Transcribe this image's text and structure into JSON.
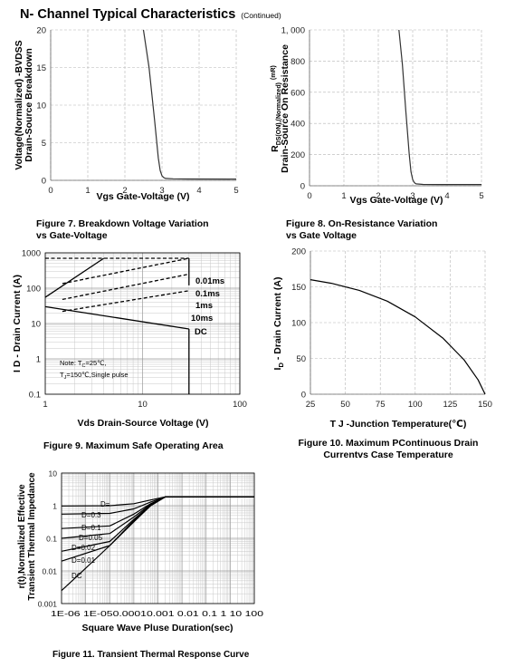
{
  "header": {
    "title": "N- Channel Typical Characteristics",
    "subtitle": "(Continued)"
  },
  "chart_data": [
    {
      "id": "fig7",
      "type": "line",
      "caption": [
        "Figure 7.   Breakdown Voltage Variation",
        "vs Gate-Voltage"
      ],
      "xlabel": "Vgs Gate-Voltage (V)",
      "ylabel": [
        "Voltage(Normalized) -BVDSS",
        "Drain-Source Breakdown"
      ],
      "xlim": [
        0,
        5
      ],
      "ylim": [
        0,
        20
      ],
      "xticks": [
        0,
        1,
        2,
        3,
        4,
        5
      ],
      "xticklabels": [
        "0",
        "1",
        "2",
        "3",
        "4",
        "5"
      ],
      "yticks": [
        0,
        5,
        10,
        15,
        20
      ],
      "yticklabels": [
        "0",
        "5",
        "10",
        "15",
        "20"
      ],
      "grid": "dashed",
      "series": [
        {
          "x": [
            2.5,
            2.65,
            2.8,
            2.9,
            2.95,
            3.0,
            3.05,
            3.1,
            3.3,
            3.7,
            5.0
          ],
          "y": [
            20,
            15,
            8,
            3,
            1.3,
            0.6,
            0.35,
            0.25,
            0.2,
            0.18,
            0.17
          ]
        }
      ]
    },
    {
      "id": "fig8",
      "type": "line",
      "caption": [
        "Figure 8. On-Resistance Variation",
        "vs Gate Voltage"
      ],
      "xlabel": "Vgs Gate-Voltage (V)",
      "ylabel_sub": "DS(ON),(Normalized)",
      "ylabel": [
        "R",
        "(mR)",
        "Drain-Source On Resistance"
      ],
      "xlim": [
        0,
        5
      ],
      "ylim": [
        0,
        1000
      ],
      "xticks": [
        0,
        1,
        2,
        3,
        4,
        5
      ],
      "xticklabels": [
        "0",
        "1",
        "2",
        "3",
        "4",
        "5"
      ],
      "yticks": [
        0,
        200,
        400,
        600,
        800,
        1000
      ],
      "yticklabels": [
        "0",
        "200",
        "400",
        "600",
        "800",
        "1, 000"
      ],
      "grid": "dashed",
      "series": [
        {
          "x": [
            2.6,
            2.7,
            2.8,
            2.9,
            2.95,
            3.0,
            3.05,
            3.1,
            3.3,
            3.8,
            5.0
          ],
          "y": [
            1000,
            780,
            480,
            200,
            90,
            40,
            20,
            12,
            9,
            8,
            8
          ]
        }
      ]
    },
    {
      "id": "fig9",
      "type": "line",
      "caption": [
        "Figure 9. Maximum Safe Operating Area"
      ],
      "xlabel": "Vds Drain-Source Voltage (V)",
      "ylabel": [
        "I D - Drain Current (A)"
      ],
      "xscale": "log",
      "yscale": "log",
      "xlim": [
        1,
        100
      ],
      "ylim": [
        0.1,
        1000
      ],
      "xticks": [
        1,
        10,
        100
      ],
      "xticklabels": [
        "1",
        "10",
        "100"
      ],
      "yticks": [
        0.1,
        1,
        10,
        100,
        1000
      ],
      "yticklabels": [
        "0.1",
        "1",
        "10",
        "100",
        "1000"
      ],
      "grid": "minor",
      "note": [
        "Note: T",
        "C",
        "=25℃,",
        "T",
        "J",
        "=150℃,Single pulse"
      ],
      "series": [
        {
          "name": "0.01ms",
          "style": "dashed",
          "x": [
            1,
            30
          ],
          "y": [
            700,
            700
          ]
        },
        {
          "name": "0.1ms",
          "style": "dashed",
          "x": [
            1.5,
            30
          ],
          "y": [
            135,
            700
          ]
        },
        {
          "name": "1ms",
          "style": "dashed",
          "x": [
            1.5,
            30
          ],
          "y": [
            48,
            250
          ]
        },
        {
          "name": "10ms",
          "style": "dashed",
          "x": [
            1.5,
            30
          ],
          "y": [
            22,
            85
          ]
        },
        {
          "name": "DC",
          "style": "solid",
          "x": [
            1,
            30
          ],
          "y": [
            30,
            7
          ]
        },
        {
          "style": "solid",
          "x": [
            1,
            4
          ],
          "y": [
            55,
            700
          ]
        },
        {
          "style": "solid",
          "x": [
            30,
            30
          ],
          "y": [
            7,
            0.1
          ]
        },
        {
          "style": "solid",
          "x": [
            30,
            30
          ],
          "y": [
            700,
            120
          ]
        }
      ]
    },
    {
      "id": "fig10",
      "type": "line",
      "caption": [
        "Figure 10. Maximum  PContinuous Drain",
        "Currentvs Case Temperature"
      ],
      "xlabel": "T J -Junction Temperature(℃)",
      "ylabel_main": "I",
      "ylabel_sub": "D",
      "ylabel": [
        "- Drain Current (A)"
      ],
      "xlim": [
        25,
        150
      ],
      "ylim": [
        0,
        200
      ],
      "xticks": [
        25,
        50,
        75,
        100,
        125,
        150
      ],
      "xticklabels": [
        "25",
        "50",
        "75",
        "100",
        "125",
        "150"
      ],
      "yticks": [
        0,
        50,
        100,
        150,
        200
      ],
      "yticklabels": [
        "0",
        "50",
        "100",
        "150",
        "200"
      ],
      "grid": "dashed",
      "series": [
        {
          "x": [
            25,
            40,
            60,
            80,
            100,
            120,
            135,
            145,
            150
          ],
          "y": [
            160,
            155,
            145,
            130,
            108,
            78,
            48,
            20,
            0
          ]
        }
      ]
    },
    {
      "id": "fig11",
      "type": "line",
      "caption": [
        "Figure 11. Transient Thermal Response Curve"
      ],
      "xlabel": "Square Wave Pluse Duration(sec)",
      "ylabel": [
        "r(t),Normalized Effective",
        "Transient Thermal Impedance"
      ],
      "xscale": "log",
      "yscale": "log",
      "xlim": [
        1e-06,
        100
      ],
      "ylim": [
        0.001,
        10
      ],
      "xticks": [
        1e-06,
        1e-05,
        0.0001,
        0.001,
        0.01,
        0.1,
        1,
        10,
        100
      ],
      "xticklabels": [
        "1E-06",
        "1E-05",
        "0.0001",
        "0.001",
        "0.01",
        "0.1",
        "1",
        "10",
        "100"
      ],
      "xticks_display": "1E-06 1E-050.00010.001 0.01 0.1 1 10 100",
      "yticks": [
        0.001,
        0.01,
        0.1,
        1,
        10
      ],
      "yticklabels": [
        "0.001",
        "0.01",
        "0.1",
        "1",
        "10"
      ],
      "grid": "minor",
      "series": [
        {
          "name": "D=",
          "x": [
            1e-06,
            0.0001,
            0.001,
            0.005,
            0.02,
            100
          ],
          "y": [
            0.98,
            1.0,
            1.15,
            1.5,
            1.85,
            1.85
          ]
        },
        {
          "name": "D=0.3",
          "x": [
            1e-06,
            0.0001,
            0.001,
            0.005,
            0.02,
            100
          ],
          "y": [
            0.55,
            0.58,
            0.8,
            1.3,
            1.85,
            1.85
          ]
        },
        {
          "name": "D=0.1",
          "x": [
            1e-06,
            0.0001,
            0.001,
            0.005,
            0.02,
            100
          ],
          "y": [
            0.2,
            0.24,
            0.55,
            1.15,
            1.85,
            1.85
          ]
        },
        {
          "name": "D=0.05",
          "x": [
            1e-06,
            0.0001,
            0.001,
            0.005,
            0.02,
            100
          ],
          "y": [
            0.1,
            0.14,
            0.45,
            1.1,
            1.85,
            1.85
          ]
        },
        {
          "name": "D=0.02",
          "x": [
            1e-06,
            0.0001,
            0.001,
            0.005,
            0.02,
            100
          ],
          "y": [
            0.04,
            0.08,
            0.38,
            1.05,
            1.85,
            1.85
          ]
        },
        {
          "name": "D=0.01",
          "x": [
            1e-06,
            0.0001,
            0.001,
            0.005,
            0.02,
            100
          ],
          "y": [
            0.02,
            0.06,
            0.35,
            1.0,
            1.85,
            1.85
          ]
        },
        {
          "name": "DC",
          "x": [
            1e-06,
            1e-05,
            0.0001,
            0.001,
            0.005,
            0.02,
            100
          ],
          "y": [
            0.0025,
            0.012,
            0.06,
            0.32,
            1.0,
            1.85,
            1.85
          ]
        }
      ]
    }
  ]
}
